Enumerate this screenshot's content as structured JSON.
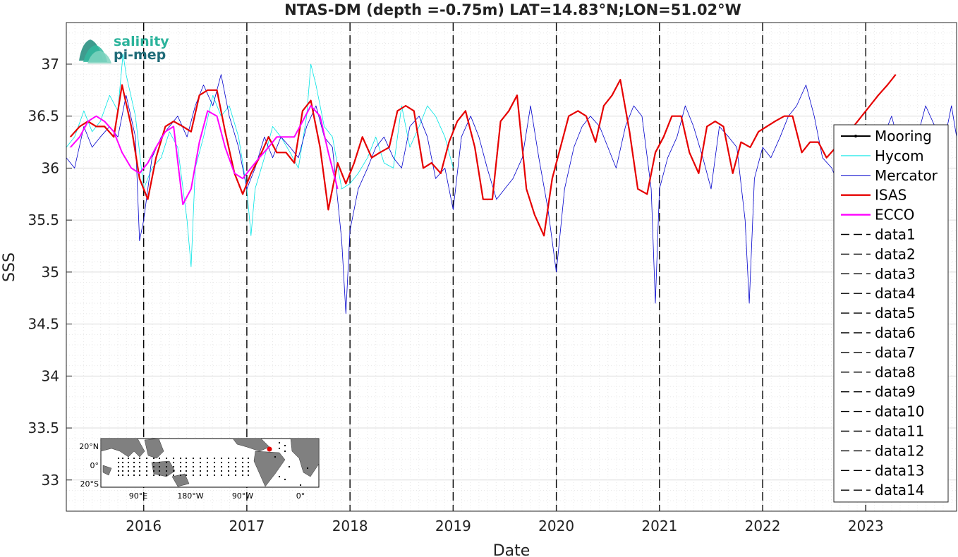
{
  "chart_data": {
    "type": "line",
    "title": "NTAS-DM (depth =-0.75m) LAT=14.83°N;LON=51.02°W",
    "xlabel": "Date",
    "ylabel": "SSS",
    "xlim": [
      2015.25,
      2023.88
    ],
    "ylim": [
      32.7,
      37.4
    ],
    "x_ticks": [
      2016,
      2017,
      2018,
      2019,
      2020,
      2021,
      2022,
      2023
    ],
    "x_tick_labels": [
      "2016",
      "2017",
      "2018",
      "2019",
      "2020",
      "2021",
      "2022",
      "2023"
    ],
    "y_ticks": [
      33,
      33.5,
      34,
      34.5,
      35,
      35.5,
      36,
      36.5,
      37
    ],
    "y_tick_labels": [
      "33",
      "33.5",
      "34",
      "34.5",
      "35",
      "35.5",
      "36",
      "36.5",
      "37"
    ],
    "grid": true,
    "legend_position": "right",
    "vlines_x": [
      2016,
      2017,
      2018,
      2019,
      2020,
      2021,
      2022,
      2023
    ],
    "series": [
      {
        "name": "Mooring",
        "color": "#000000",
        "style": "solid-marker",
        "x": [],
        "y": []
      },
      {
        "name": "Hycom",
        "color": "#00e5e5",
        "style": "thin",
        "x": [
          2015.25,
          2015.33,
          2015.42,
          2015.5,
          2015.58,
          2015.67,
          2015.75,
          2015.8,
          2015.83,
          2015.92,
          2016.0,
          2016.08,
          2016.17,
          2016.25,
          2016.33,
          2016.42,
          2016.46,
          2016.5,
          2016.58,
          2016.67,
          2016.75,
          2016.83,
          2016.92,
          2017.0,
          2017.04,
          2017.08,
          2017.17,
          2017.25,
          2017.33,
          2017.42,
          2017.5,
          2017.58,
          2017.62,
          2017.67,
          2017.75,
          2017.83,
          2017.92,
          2018.0,
          2018.08,
          2018.17,
          2018.25,
          2018.33,
          2018.42,
          2018.5,
          2018.58,
          2018.67,
          2018.75,
          2018.83,
          2018.92,
          2019.0
        ],
        "y": [
          36.2,
          36.3,
          36.55,
          36.35,
          36.45,
          36.7,
          36.55,
          37.1,
          36.9,
          36.5,
          35.8,
          36.0,
          36.1,
          36.35,
          36.2,
          35.5,
          35.05,
          36.0,
          36.3,
          36.7,
          36.5,
          36.6,
          36.3,
          35.8,
          35.35,
          35.8,
          36.1,
          36.4,
          36.3,
          36.15,
          36.0,
          36.5,
          37.0,
          36.8,
          36.4,
          36.3,
          35.8,
          35.85,
          35.95,
          36.1,
          36.3,
          36.05,
          36.0,
          36.6,
          36.2,
          36.4,
          36.6,
          36.5,
          36.3,
          36.0
        ]
      },
      {
        "name": "Mercator",
        "color": "#0000cc",
        "style": "thin",
        "x": [
          2015.25,
          2015.33,
          2015.42,
          2015.5,
          2015.58,
          2015.67,
          2015.75,
          2015.83,
          2015.92,
          2015.96,
          2016.0,
          2016.08,
          2016.17,
          2016.25,
          2016.33,
          2016.42,
          2016.5,
          2016.58,
          2016.67,
          2016.75,
          2016.83,
          2016.92,
          2017.0,
          2017.08,
          2017.17,
          2017.25,
          2017.33,
          2017.42,
          2017.5,
          2017.58,
          2017.67,
          2017.75,
          2017.83,
          2017.92,
          2017.96,
          2018.0,
          2018.08,
          2018.17,
          2018.25,
          2018.33,
          2018.42,
          2018.5,
          2018.58,
          2018.67,
          2018.75,
          2018.83,
          2018.92,
          2019.0,
          2019.08,
          2019.17,
          2019.25,
          2019.33,
          2019.42,
          2019.5,
          2019.58,
          2019.67,
          2019.75,
          2019.83,
          2019.92,
          2020.0,
          2020.08,
          2020.17,
          2020.25,
          2020.33,
          2020.42,
          2020.5,
          2020.58,
          2020.67,
          2020.75,
          2020.83,
          2020.92,
          2020.96,
          2021.0,
          2021.08,
          2021.17,
          2021.25,
          2021.33,
          2021.42,
          2021.5,
          2021.58,
          2021.67,
          2021.75,
          2021.83,
          2021.87,
          2021.92,
          2022.0,
          2022.08,
          2022.17,
          2022.25,
          2022.33,
          2022.42,
          2022.5,
          2022.58,
          2022.67,
          2022.75,
          2022.83,
          2022.92,
          2023.0,
          2023.08,
          2023.17,
          2023.25,
          2023.33,
          2023.42,
          2023.5,
          2023.58,
          2023.67,
          2023.75,
          2023.83,
          2023.88
        ],
        "y": [
          36.1,
          36.0,
          36.4,
          36.2,
          36.3,
          36.4,
          36.3,
          36.7,
          36.3,
          35.3,
          35.5,
          36.1,
          36.3,
          36.4,
          36.5,
          36.3,
          36.6,
          36.8,
          36.6,
          36.9,
          36.5,
          36.2,
          35.8,
          36.0,
          36.3,
          36.1,
          36.3,
          36.2,
          36.1,
          36.4,
          36.6,
          36.3,
          36.2,
          35.3,
          34.6,
          35.4,
          35.8,
          36.0,
          36.2,
          36.3,
          36.1,
          36.0,
          36.4,
          36.5,
          36.3,
          35.9,
          36.0,
          35.6,
          36.3,
          36.5,
          36.3,
          36.0,
          35.7,
          35.8,
          35.9,
          36.1,
          36.6,
          36.1,
          35.6,
          35.0,
          35.8,
          36.2,
          36.4,
          36.5,
          36.4,
          36.2,
          36.0,
          36.4,
          36.6,
          36.5,
          35.8,
          34.7,
          35.8,
          36.1,
          36.3,
          36.6,
          36.4,
          36.1,
          35.8,
          36.4,
          36.3,
          36.2,
          35.5,
          34.7,
          35.9,
          36.2,
          36.1,
          36.3,
          36.5,
          36.6,
          36.8,
          36.5,
          36.1,
          36.0,
          35.8,
          36.2,
          36.0,
          36.3,
          36.1,
          36.3,
          36.5,
          36.2,
          36.4,
          36.3,
          36.6,
          36.4,
          36.2,
          36.6,
          36.3
        ]
      },
      {
        "name": "ISAS",
        "color": "#e60000",
        "style": "thick",
        "x": [
          2015.29,
          2015.38,
          2015.46,
          2015.54,
          2015.62,
          2015.71,
          2015.79,
          2015.88,
          2015.96,
          2016.04,
          2016.12,
          2016.21,
          2016.29,
          2016.38,
          2016.46,
          2016.54,
          2016.62,
          2016.71,
          2016.79,
          2016.88,
          2016.96,
          2017.04,
          2017.12,
          2017.21,
          2017.29,
          2017.38,
          2017.46,
          2017.54,
          2017.62,
          2017.71,
          2017.79,
          2017.88,
          2017.96,
          2018.04,
          2018.12,
          2018.21,
          2018.29,
          2018.38,
          2018.46,
          2018.54,
          2018.62,
          2018.71,
          2018.79,
          2018.88,
          2018.96,
          2019.04,
          2019.12,
          2019.21,
          2019.29,
          2019.38,
          2019.46,
          2019.54,
          2019.62,
          2019.71,
          2019.79,
          2019.88,
          2019.96,
          2020.04,
          2020.12,
          2020.21,
          2020.29,
          2020.38,
          2020.46,
          2020.54,
          2020.62,
          2020.71,
          2020.79,
          2020.88,
          2020.96,
          2021.04,
          2021.12,
          2021.21,
          2021.29,
          2021.38,
          2021.46,
          2021.54,
          2021.62,
          2021.71,
          2021.79,
          2021.88,
          2021.96,
          2022.04,
          2022.12,
          2022.21,
          2022.29,
          2022.38,
          2022.46,
          2022.54,
          2022.62,
          2022.71,
          2022.79,
          2022.88,
          2022.96,
          2023.04,
          2023.12,
          2023.21,
          2023.29
        ],
        "y": [
          36.3,
          36.4,
          36.45,
          36.4,
          36.4,
          36.3,
          36.8,
          36.4,
          35.9,
          35.7,
          36.1,
          36.4,
          36.45,
          36.4,
          36.35,
          36.7,
          36.75,
          36.75,
          36.35,
          35.95,
          35.75,
          35.95,
          36.1,
          36.3,
          36.15,
          36.15,
          36.05,
          36.55,
          36.65,
          36.2,
          35.6,
          36.05,
          35.85,
          36.05,
          36.3,
          36.1,
          36.15,
          36.2,
          36.55,
          36.6,
          36.55,
          36.0,
          36.05,
          35.95,
          36.25,
          36.45,
          36.55,
          36.2,
          35.7,
          35.7,
          36.45,
          36.55,
          36.7,
          35.8,
          35.55,
          35.35,
          35.9,
          36.2,
          36.5,
          36.55,
          36.5,
          36.25,
          36.6,
          36.7,
          36.85,
          36.35,
          35.8,
          35.75,
          36.15,
          36.3,
          36.5,
          36.5,
          36.15,
          35.95,
          36.4,
          36.45,
          36.4,
          35.95,
          36.25,
          36.2,
          36.35,
          36.4,
          36.45,
          36.5,
          36.5,
          36.15,
          36.25,
          36.25,
          36.1,
          36.2,
          36.3,
          36.4,
          36.5,
          36.6,
          36.7,
          36.8,
          36.9
        ]
      },
      {
        "name": "ECCO",
        "color": "#ff00ff",
        "style": "medium",
        "x": [
          2015.29,
          2015.38,
          2015.46,
          2015.54,
          2015.62,
          2015.71,
          2015.79,
          2015.88,
          2015.96,
          2016.04,
          2016.12,
          2016.21,
          2016.29,
          2016.38,
          2016.46,
          2016.54,
          2016.62,
          2016.71,
          2016.79,
          2016.88,
          2016.96,
          2017.04,
          2017.12,
          2017.21,
          2017.29,
          2017.38,
          2017.46,
          2017.54,
          2017.62,
          2017.71,
          2017.79,
          2017.88
        ],
        "y": [
          36.2,
          36.3,
          36.45,
          36.5,
          36.45,
          36.35,
          36.15,
          36.0,
          35.95,
          36.05,
          36.2,
          36.35,
          36.4,
          35.65,
          35.8,
          36.25,
          36.55,
          36.5,
          36.2,
          35.95,
          35.9,
          36.0,
          36.1,
          36.2,
          36.3,
          36.3,
          36.3,
          36.45,
          36.6,
          36.5,
          36.15,
          35.8
        ]
      },
      {
        "name": "data1",
        "color": "#000000",
        "style": "dashed",
        "x": [],
        "y": []
      },
      {
        "name": "data2",
        "color": "#000000",
        "style": "dashed",
        "x": [],
        "y": []
      },
      {
        "name": "data3",
        "color": "#000000",
        "style": "dashed",
        "x": [],
        "y": []
      },
      {
        "name": "data4",
        "color": "#000000",
        "style": "dashed",
        "x": [],
        "y": []
      },
      {
        "name": "data5",
        "color": "#000000",
        "style": "dashed",
        "x": [],
        "y": []
      },
      {
        "name": "data6",
        "color": "#000000",
        "style": "dashed",
        "x": [],
        "y": []
      },
      {
        "name": "data7",
        "color": "#000000",
        "style": "dashed",
        "x": [],
        "y": []
      },
      {
        "name": "data8",
        "color": "#000000",
        "style": "dashed",
        "x": [],
        "y": []
      },
      {
        "name": "data9",
        "color": "#000000",
        "style": "dashed",
        "x": [],
        "y": []
      },
      {
        "name": "data10",
        "color": "#000000",
        "style": "dashed",
        "x": [],
        "y": []
      },
      {
        "name": "data11",
        "color": "#000000",
        "style": "dashed",
        "x": [],
        "y": []
      },
      {
        "name": "data12",
        "color": "#000000",
        "style": "dashed",
        "x": [],
        "y": []
      },
      {
        "name": "data13",
        "color": "#000000",
        "style": "dashed",
        "x": [],
        "y": []
      },
      {
        "name": "data14",
        "color": "#000000",
        "style": "dashed",
        "x": [],
        "y": []
      }
    ]
  },
  "logo": {
    "line1": "salinity",
    "line2": "pi-mep"
  },
  "inset_map": {
    "lat_labels": [
      "20°N",
      "0°",
      "20°S"
    ],
    "lon_labels": [
      "90°E",
      "180°W",
      "90°W",
      "0°"
    ],
    "station_marker_color": "#e60000",
    "land_color": "#808080"
  }
}
